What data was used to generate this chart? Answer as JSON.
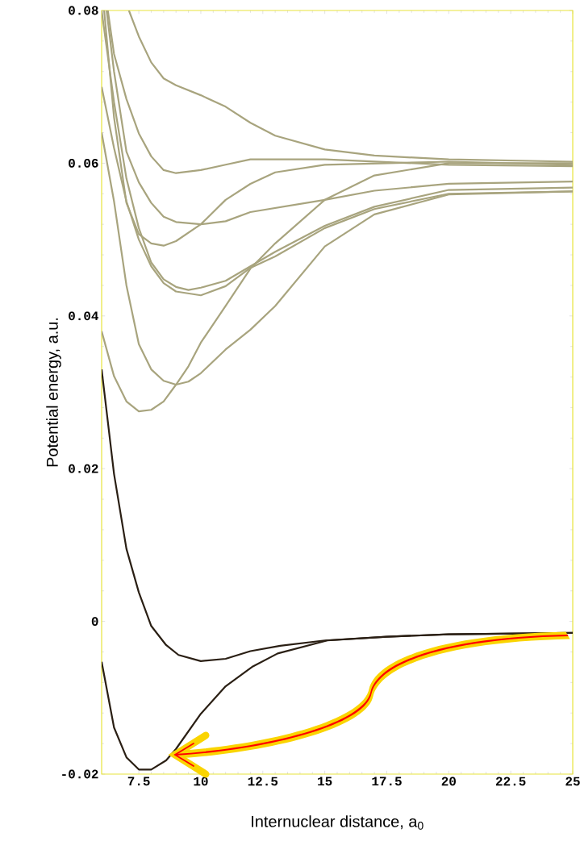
{
  "chart_data": {
    "type": "line",
    "xlabel": "Internuclear distance, a$_{0}$",
    "ylabel": "Potential energy, a.u.",
    "xlim": [
      6,
      25
    ],
    "ylim": [
      -0.02,
      0.08
    ],
    "xticks": [
      7.5,
      10,
      12.5,
      15,
      17.5,
      20,
      22.5,
      25
    ],
    "yticks": [
      -0.02,
      0,
      0.02,
      0.04,
      0.06,
      0.08
    ],
    "marker": "none",
    "line_style": "solid",
    "series": [
      {
        "color": "#a8a47e",
        "x": [
          7.1,
          7.5,
          8,
          8.5,
          9,
          10,
          11,
          12,
          13,
          15,
          17,
          20,
          25
        ],
        "values": [
          0.08,
          0.0766,
          0.0732,
          0.0711,
          0.0702,
          0.0689,
          0.0674,
          0.0653,
          0.0636,
          0.0618,
          0.061,
          0.0605,
          0.0602
        ]
      },
      {
        "color": "#a8a47e",
        "x": [
          6.25,
          6.5,
          7,
          7.5,
          8,
          8.5,
          9,
          10,
          11,
          12,
          15,
          20,
          25
        ],
        "values": [
          0.08,
          0.0743,
          0.0684,
          0.0639,
          0.0609,
          0.0591,
          0.0587,
          0.0591,
          0.0598,
          0.0605,
          0.0605,
          0.0598,
          0.0596
        ]
      },
      {
        "color": "#a8a47e",
        "x": [
          6.2,
          6.5,
          7,
          7.5,
          8,
          8.5,
          9,
          10,
          11,
          12,
          15,
          17,
          20,
          25
        ],
        "values": [
          0.08,
          0.072,
          0.0615,
          0.0575,
          0.0548,
          0.053,
          0.0523,
          0.052,
          0.0524,
          0.0536,
          0.0552,
          0.0564,
          0.0573,
          0.0576
        ]
      },
      {
        "color": "#a8a47e",
        "x": [
          6.1,
          6.5,
          7,
          7.5,
          8,
          8.5,
          9,
          10,
          11,
          12,
          13,
          15,
          20,
          25
        ],
        "values": [
          0.08,
          0.066,
          0.0548,
          0.0507,
          0.0495,
          0.0492,
          0.0498,
          0.052,
          0.0552,
          0.0573,
          0.0588,
          0.0598,
          0.0602,
          0.0598
        ]
      },
      {
        "color": "#a8a47e",
        "x": [
          6,
          6.5,
          7,
          7.5,
          8,
          8.5,
          9,
          9.5,
          10,
          11,
          12,
          13,
          15,
          17,
          20,
          25
        ],
        "values": [
          0.08,
          0.068,
          0.058,
          0.0515,
          0.047,
          0.0448,
          0.0438,
          0.0434,
          0.0437,
          0.0446,
          0.0465,
          0.0484,
          0.0518,
          0.0543,
          0.0565,
          0.0568
        ]
      },
      {
        "color": "#a8a47e",
        "x": [
          6,
          6.5,
          7,
          7.5,
          8,
          8.5,
          9,
          10,
          11,
          12,
          13,
          15,
          17,
          20,
          25
        ],
        "values": [
          0.07,
          0.062,
          0.055,
          0.05,
          0.0465,
          0.0443,
          0.0432,
          0.0427,
          0.0439,
          0.0463,
          0.0478,
          0.0515,
          0.054,
          0.056,
          0.0563
        ]
      },
      {
        "color": "#a8a47e",
        "x": [
          6,
          6.5,
          7,
          7.5,
          8,
          8.5,
          9,
          9.5,
          10,
          11,
          12,
          13,
          15,
          17,
          20,
          25
        ],
        "values": [
          0.064,
          0.055,
          0.044,
          0.0363,
          0.033,
          0.0315,
          0.031,
          0.0314,
          0.0325,
          0.0356,
          0.0382,
          0.0413,
          0.0491,
          0.0533,
          0.0559,
          0.0563
        ]
      },
      {
        "color": "#a8a47e",
        "x": [
          6,
          6.5,
          7,
          7.5,
          8,
          8.5,
          9,
          9.5,
          10,
          11,
          12,
          13,
          15,
          17,
          20,
          25
        ],
        "values": [
          0.038,
          0.0321,
          0.0288,
          0.0275,
          0.0277,
          0.0288,
          0.031,
          0.0334,
          0.0365,
          0.0413,
          0.0462,
          0.0495,
          0.0552,
          0.0584,
          0.06,
          0.06
        ]
      },
      {
        "color": "#2a1f14",
        "x": [
          6,
          6.5,
          7,
          7.5,
          8,
          8.6,
          9.1,
          10,
          11,
          12,
          13.2,
          15,
          17.5,
          20,
          25
        ],
        "values": [
          0.033,
          0.0193,
          0.0095,
          0.0038,
          -0.0006,
          -0.0031,
          -0.0044,
          -0.0052,
          -0.0049,
          -0.0039,
          -0.0032,
          -0.0025,
          -0.002,
          -0.0017,
          -0.0015
        ]
      },
      {
        "color": "#2a1f14",
        "x": [
          6,
          6.5,
          7,
          7.5,
          8,
          8.6,
          9,
          10,
          11,
          12.1,
          13.1,
          15.1,
          17.5,
          20,
          25
        ],
        "values": [
          -0.0053,
          -0.0139,
          -0.0178,
          -0.0194,
          -0.0194,
          -0.0182,
          -0.0167,
          -0.0121,
          -0.0085,
          -0.0059,
          -0.0042,
          -0.0025,
          -0.002,
          -0.0017,
          -0.0015
        ]
      }
    ]
  }
}
